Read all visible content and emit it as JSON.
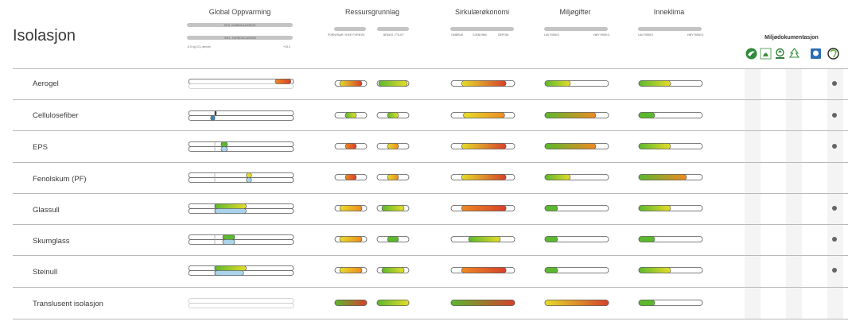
{
  "title": "Isolasjon",
  "headers": {
    "gwp": "Global Oppvarming",
    "resource": "Ressursgrunnlag",
    "circular": "Sirkulærøkonomi",
    "toxins": "Miljøgifter",
    "indoor": "Inneklima",
    "envdoc": "Miljødokumentasjon"
  },
  "captions": {
    "gwp_excl": "EKS. KARBONLAGRING",
    "gwp_incl": "INKL. KARBONLAGRING",
    "gwp_min": "-5,0 kg CO₂-ekv/m²",
    "gwp_max": "+15,0",
    "res_left": "FORNYBAR / IKKE FORNYB.",
    "res_right": "BRUKS / TYLET",
    "circ_a": "OMBRUK",
    "circ_b": "GJENVINN",
    "circ_c": "DEPONI",
    "tox_low": "LAV RISIKO",
    "tox_high": "HØY RISIKO",
    "in_low": "LAV RISIKO",
    "in_high": "HØY RISIKO"
  },
  "logos": [
    {
      "icon": "nordic-swan-icon",
      "color": "#2e8b3a"
    },
    {
      "icon": "eu-ecolabel-icon",
      "color": "#3a8f3f"
    },
    {
      "icon": "pefc-icon",
      "color": "#2f7d3b"
    },
    {
      "icon": "fsc-icon",
      "color": "#3a8f3f"
    },
    {
      "icon": "epd-norge-icon",
      "color": "#2a6fb3"
    },
    {
      "icon": "epd-icon",
      "color": "#222222"
    }
  ],
  "colors": {
    "green": "#5cb82e",
    "yellow": "#e6dc29",
    "orange": "#ee8a23",
    "red": "#d6402a",
    "blue": "#4fa3d1",
    "lightblue": "#a9d3ea",
    "darkblue": "#2a87c0",
    "teal": "#3a8bb5"
  },
  "chart_data": {
    "type": "table",
    "gwp_range": [
      -5,
      15
    ],
    "rows": [
      {
        "name": "Aerogel",
        "gwp_excl": [
          11.5,
          14.5
        ],
        "gwp_excl_colors": [
          "orange",
          "red"
        ],
        "gwp_incl": null,
        "res_left": [
          "yellow",
          "red",
          0.7
        ],
        "res_right": [
          "green",
          "yellow",
          0.9
        ],
        "circular": [
          "yellow",
          "red",
          0.7
        ],
        "toxins": [
          "green",
          "yellow",
          0.4
        ],
        "indoor": [
          "green",
          "yellow",
          0.5
        ],
        "envdoc": true
      },
      {
        "name": "Cellulosefiber",
        "gwp_excl": [
          0,
          0.3
        ],
        "gwp_excl_colors": [
          "#333333",
          "#333333"
        ],
        "gwp_incl": [
          -0.8,
          0
        ],
        "gwp_incl_colors": [
          "darkblue",
          "teal"
        ],
        "res_left": [
          "green",
          "yellow",
          0.35
        ],
        "res_right": [
          "green",
          "yellow",
          0.35
        ],
        "circular": [
          "yellow",
          "orange",
          0.65
        ],
        "toxins": [
          "green",
          "orange",
          0.8
        ],
        "indoor": [
          "green",
          "green",
          0.25
        ],
        "envdoc": true
      },
      {
        "name": "EPS",
        "gwp_excl": [
          1.2,
          2.4
        ],
        "gwp_excl_colors": [
          "green",
          "green"
        ],
        "gwp_incl": [
          1.2,
          2.4
        ],
        "gwp_incl_colors": [
          "lightblue",
          "lightblue"
        ],
        "res_left": [
          "orange",
          "red",
          0.35
        ],
        "res_right": [
          "yellow",
          "orange",
          0.35
        ],
        "circular": [
          "yellow",
          "red",
          0.7
        ],
        "toxins": [
          "green",
          "orange",
          0.8
        ],
        "indoor": [
          "green",
          "yellow",
          0.5
        ],
        "envdoc": true
      },
      {
        "name": "Fenolskum (PF)",
        "gwp_excl": [
          6,
          7
        ],
        "gwp_excl_colors": [
          "yellow",
          "yellow"
        ],
        "gwp_incl": [
          6,
          7
        ],
        "gwp_incl_colors": [
          "lightblue",
          "lightblue"
        ],
        "res_left": [
          "orange",
          "red",
          0.35
        ],
        "res_right": [
          "yellow",
          "orange",
          0.35
        ],
        "circular": [
          "yellow",
          "red",
          0.7
        ],
        "toxins": [
          "green",
          "yellow",
          0.4
        ],
        "indoor": [
          "green",
          "orange",
          0.75
        ],
        "envdoc": false
      },
      {
        "name": "Glassull",
        "gwp_excl": [
          0,
          6
        ],
        "gwp_excl_colors": [
          "green",
          "yellow"
        ],
        "gwp_incl": [
          0,
          6
        ],
        "gwp_incl_colors": [
          "lightblue",
          "lightblue"
        ],
        "res_left": [
          "yellow",
          "orange",
          0.7
        ],
        "res_right": [
          "green",
          "yellow",
          0.7
        ],
        "circular": [
          "orange",
          "red",
          0.7
        ],
        "toxins": [
          "green",
          "green",
          0.2
        ],
        "indoor": [
          "green",
          "yellow",
          0.5
        ],
        "envdoc": true
      },
      {
        "name": "Skumglass",
        "gwp_excl": [
          1.5,
          3.8
        ],
        "gwp_excl_colors": [
          "green",
          "green"
        ],
        "gwp_incl": [
          1.5,
          3.8
        ],
        "gwp_incl_colors": [
          "lightblue",
          "lightblue"
        ],
        "res_left": [
          "yellow",
          "orange",
          0.7
        ],
        "res_right": [
          "green",
          "green",
          0.35
        ],
        "circular": [
          "green",
          "yellow",
          0.5
        ],
        "toxins": [
          "green",
          "green",
          0.2
        ],
        "indoor": [
          "green",
          "green",
          0.25
        ],
        "envdoc": true
      },
      {
        "name": "Steinull",
        "gwp_excl": [
          0,
          6
        ],
        "gwp_excl_colors": [
          "green",
          "yellow"
        ],
        "gwp_incl": [
          0,
          5.5
        ],
        "gwp_incl_colors": [
          "lightblue",
          "lightblue"
        ],
        "res_left": [
          "yellow",
          "orange",
          0.7
        ],
        "res_right": [
          "green",
          "yellow",
          0.7
        ],
        "circular": [
          "orange",
          "red",
          0.7
        ],
        "toxins": [
          "green",
          "green",
          0.2
        ],
        "indoor": [
          "green",
          "yellow",
          0.5
        ],
        "envdoc": true
      },
      {
        "name": "Translusent isolasjon",
        "gwp_excl": null,
        "gwp_incl": null,
        "res_left": [
          "green",
          "red",
          1.0
        ],
        "res_right": [
          "green",
          "yellow",
          1.0
        ],
        "circular": [
          "green",
          "red",
          1.0
        ],
        "toxins": [
          "yellow",
          "red",
          1.0
        ],
        "indoor": [
          "green",
          "green",
          0.25
        ],
        "envdoc": false
      }
    ]
  }
}
